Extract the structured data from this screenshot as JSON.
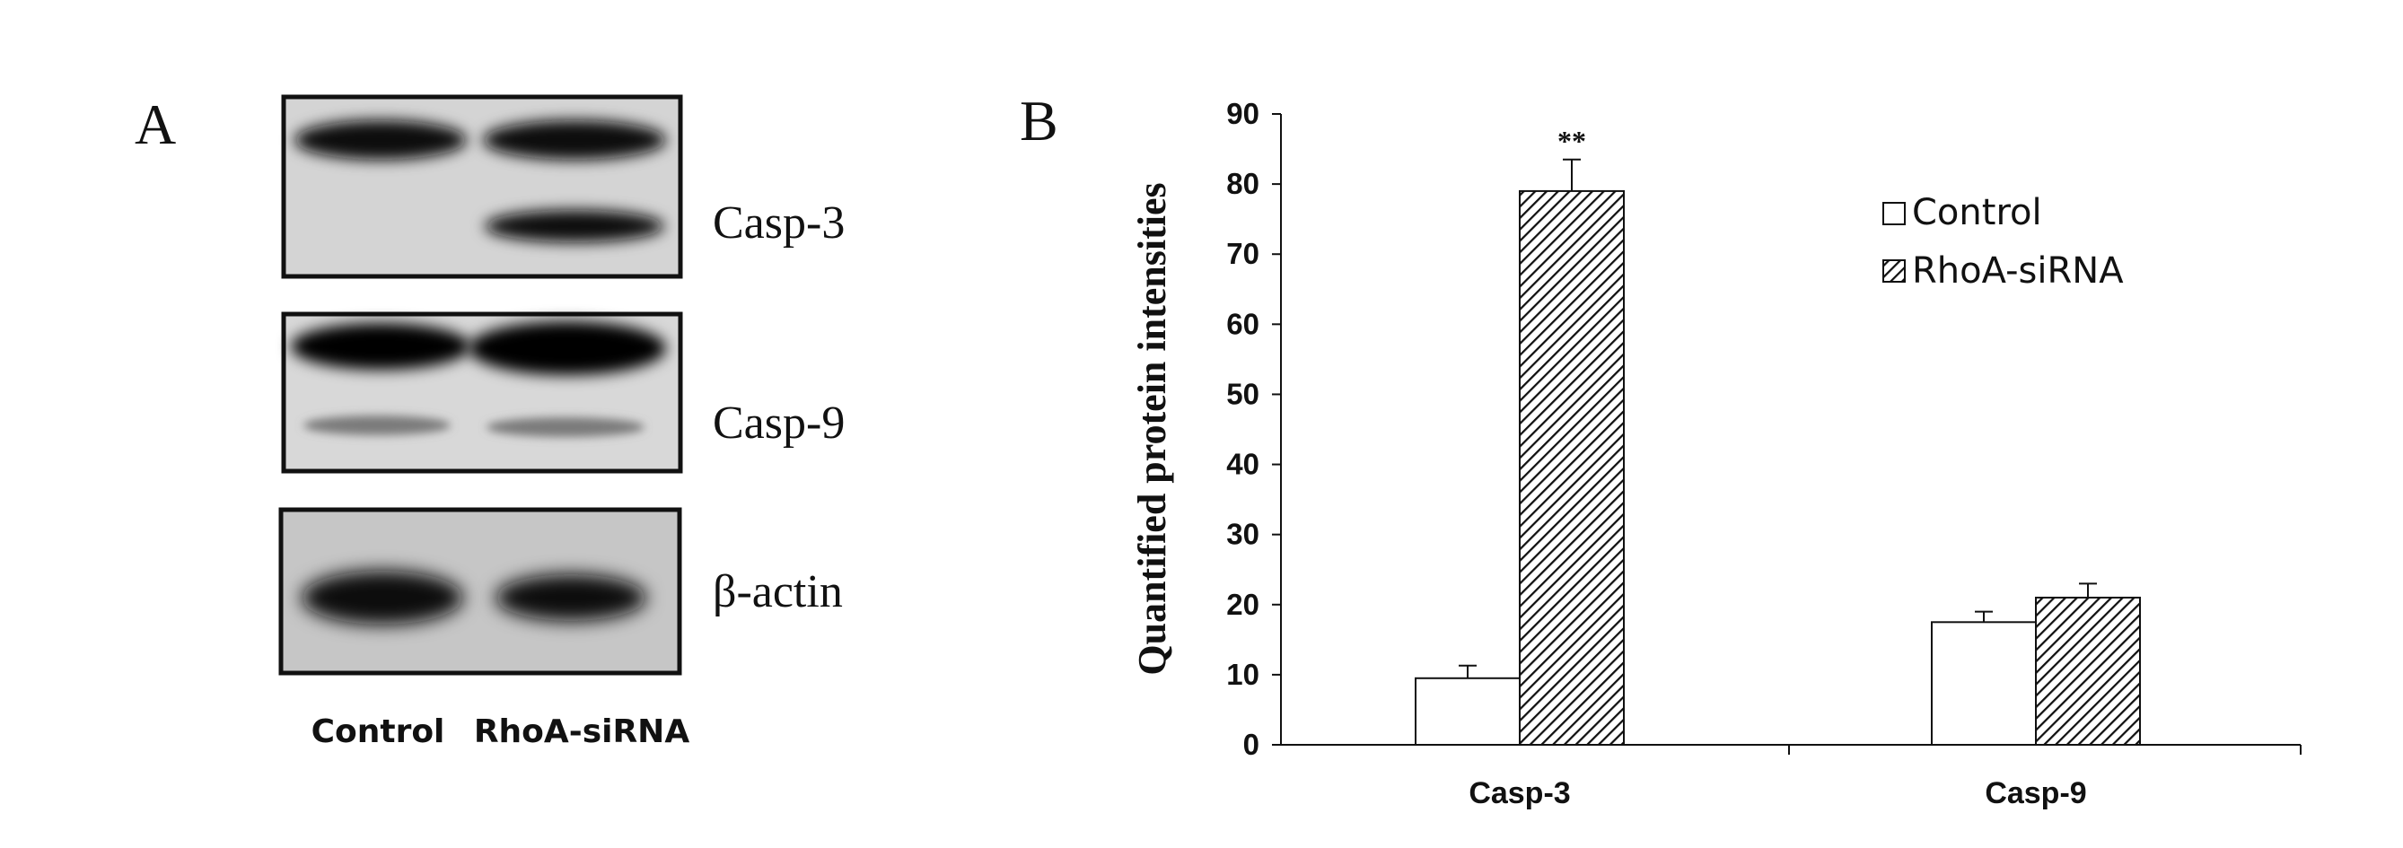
{
  "panel_a": {
    "letter": "A",
    "blots": [
      {
        "label": "Casp-3"
      },
      {
        "label": "Casp-9"
      },
      {
        "label": "β-actin"
      }
    ],
    "lanes": [
      "Control",
      "RhoA-siRNA"
    ]
  },
  "panel_b": {
    "letter": "B"
  },
  "colors": {
    "control_fill": "#ffffff",
    "rhoa_fill": "hatch-diagonal",
    "ink": "#111111"
  },
  "chart_data": {
    "type": "bar",
    "title": "",
    "xlabel": "",
    "ylabel": "Quantified protein intensities",
    "categories": [
      "Casp-3",
      "Casp-9"
    ],
    "series": [
      {
        "name": "Control",
        "values": [
          9.5,
          17.5
        ],
        "errors": [
          1.8,
          1.5
        ]
      },
      {
        "name": "RhoA-siRNA",
        "values": [
          79,
          21
        ],
        "errors": [
          4.5,
          2
        ]
      }
    ],
    "ylim": [
      0,
      90
    ],
    "yticks": [
      0,
      10,
      20,
      30,
      40,
      50,
      60,
      70,
      80,
      90
    ],
    "annotations": [
      {
        "category": "Casp-3",
        "series": "RhoA-siRNA",
        "text": "**"
      }
    ],
    "legend": "top-right",
    "grid": false
  }
}
